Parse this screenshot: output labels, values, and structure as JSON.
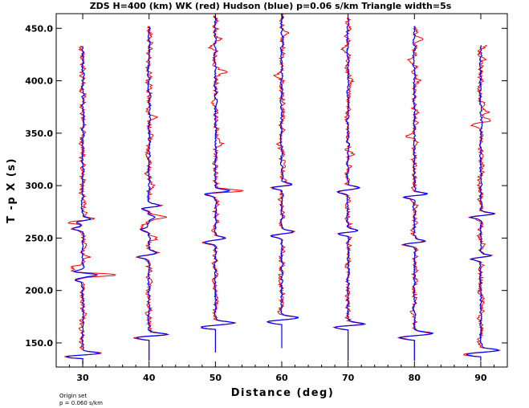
{
  "chart_data": {
    "type": "line",
    "title": "ZDS H=400 (km) WK (red) Hudson (blue) p=0.06 s/km Triangle width=5s",
    "xlabel": "Distance (deg)",
    "ylabel": "T -p X (s)",
    "xlim": [
      26,
      94
    ],
    "ylim": [
      127,
      464
    ],
    "x_ticks": [
      "30",
      "40",
      "50",
      "60",
      "70",
      "80",
      "90"
    ],
    "y_ticks": [
      "150.0",
      "200.0",
      "250.0",
      "300.0",
      "350.0",
      "400.0",
      "450.0"
    ],
    "x_tick_values": [
      30,
      40,
      50,
      60,
      70,
      80,
      90
    ],
    "y_tick_values": [
      150,
      200,
      250,
      300,
      350,
      400,
      450
    ],
    "series": [
      {
        "name": "WK",
        "color": "#ff0000"
      },
      {
        "name": "Hudson",
        "color": "#0000ff"
      }
    ],
    "traces": [
      {
        "distance": 30,
        "t_start": 130,
        "t_end": 433,
        "events": [
          [
            137,
            -5
          ],
          [
            140,
            5
          ],
          [
            210,
            -2
          ],
          [
            215,
            4
          ],
          [
            218,
            -3
          ],
          [
            259,
            -3
          ],
          [
            265,
            -2
          ],
          [
            268,
            2
          ]
        ],
        "red_extra": [
          [
            215,
            5
          ],
          [
            222,
            -3
          ],
          [
            232,
            2
          ],
          [
            265,
            -2
          ],
          [
            268,
            1.5
          ]
        ]
      },
      {
        "distance": 40,
        "t_start": 133,
        "t_end": 452,
        "events": [
          [
            155,
            -4
          ],
          [
            158,
            5
          ],
          [
            232,
            -3
          ],
          [
            236,
            2
          ],
          [
            258,
            -2
          ],
          [
            270,
            2
          ],
          [
            278,
            -2
          ],
          [
            281,
            3
          ]
        ],
        "red_extra": [
          [
            250,
            2
          ],
          [
            262,
            -2
          ],
          [
            270,
            2
          ],
          [
            300,
            1
          ],
          [
            365,
            1.5
          ],
          [
            372,
            -1
          ]
        ]
      },
      {
        "distance": 50,
        "t_start": 141,
        "t_end": 462,
        "events": [
          [
            165,
            -4
          ],
          [
            169,
            5
          ],
          [
            246,
            -3
          ],
          [
            250,
            3
          ],
          [
            292,
            -3
          ],
          [
            295,
            4
          ]
        ],
        "red_extra": [
          [
            295,
            3
          ],
          [
            340,
            1.5
          ],
          [
            380,
            -1
          ],
          [
            408,
            3
          ],
          [
            432,
            -1.5
          ],
          [
            440,
            1
          ]
        ]
      },
      {
        "distance": 60,
        "t_start": 145,
        "t_end": 464,
        "events": [
          [
            170,
            -4
          ],
          [
            174,
            5
          ],
          [
            252,
            -3
          ],
          [
            256,
            3
          ],
          [
            298,
            -3
          ],
          [
            301,
            3
          ]
        ],
        "red_extra": [
          [
            305,
            1
          ],
          [
            340,
            -1
          ],
          [
            405,
            -1.5
          ],
          [
            425,
            1
          ],
          [
            445,
            1.5
          ]
        ]
      },
      {
        "distance": 70,
        "t_start": 133,
        "t_end": 460,
        "events": [
          [
            165,
            -4
          ],
          [
            168,
            5
          ],
          [
            254,
            -3
          ],
          [
            257,
            3
          ],
          [
            294,
            -3
          ],
          [
            298,
            3
          ]
        ],
        "red_extra": [
          [
            330,
            1
          ],
          [
            400,
            1.5
          ],
          [
            430,
            -1.5
          ],
          [
            450,
            1
          ]
        ]
      },
      {
        "distance": 80,
        "t_start": 133,
        "t_end": 452,
        "events": [
          [
            155,
            -4
          ],
          [
            159,
            5
          ],
          [
            244,
            -3
          ],
          [
            247,
            3
          ],
          [
            289,
            -3
          ],
          [
            292,
            4
          ]
        ],
        "red_extra": [
          [
            347,
            -2
          ],
          [
            370,
            1.5
          ],
          [
            400,
            1
          ],
          [
            420,
            -1
          ],
          [
            440,
            1.5
          ]
        ]
      },
      {
        "distance": 90,
        "t_start": 133,
        "t_end": 434,
        "events": [
          [
            139,
            -4
          ],
          [
            143,
            5
          ],
          [
            230,
            -3
          ],
          [
            233,
            3
          ],
          [
            270,
            -3
          ],
          [
            273,
            4
          ]
        ],
        "red_extra": [
          [
            358,
            -3
          ],
          [
            362,
            3
          ],
          [
            370,
            1.5
          ],
          [
            420,
            1
          ],
          [
            433,
            1
          ]
        ]
      }
    ]
  },
  "footer": {
    "line1": "Origin set",
    "line2": "p = 0.060 s/km"
  }
}
